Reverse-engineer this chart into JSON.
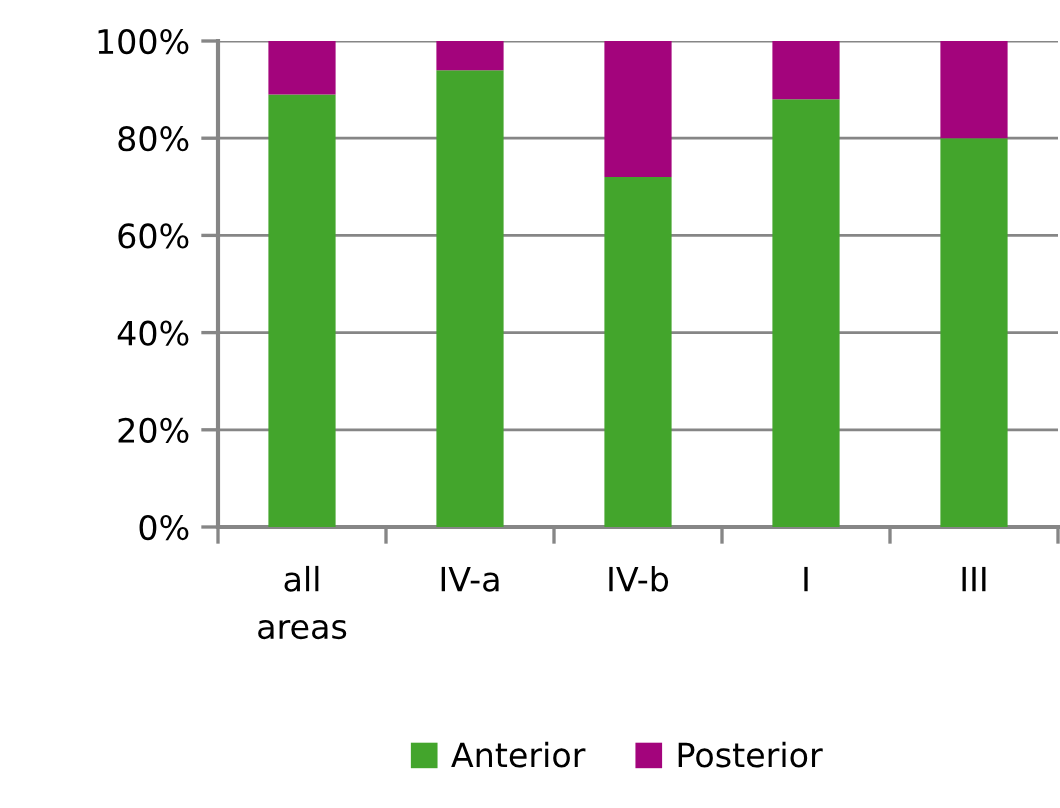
{
  "chart_data": {
    "type": "bar",
    "stacked": true,
    "categories": [
      "all areas",
      "IV-a",
      "IV-b",
      "I",
      "III"
    ],
    "series": [
      {
        "name": "Anterior",
        "color": "#43a52c",
        "values": [
          89,
          94,
          72,
          88,
          80
        ]
      },
      {
        "name": "Posterior",
        "color": "#a3047c",
        "values": [
          11,
          6,
          28,
          12,
          20
        ]
      }
    ],
    "ylim": [
      0,
      100
    ],
    "yticks": [
      {
        "value": 0,
        "label": "0%"
      },
      {
        "value": 20,
        "label": "20%"
      },
      {
        "value": 40,
        "label": "40%"
      },
      {
        "value": 60,
        "label": "60%"
      },
      {
        "value": 80,
        "label": "80%"
      },
      {
        "value": 100,
        "label": "100%"
      }
    ],
    "grid": "y",
    "legend": "bottom"
  }
}
